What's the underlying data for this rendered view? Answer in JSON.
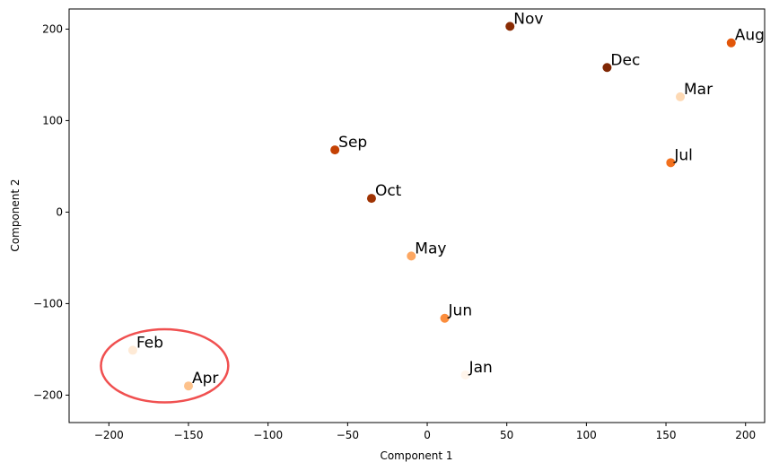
{
  "chart_data": {
    "type": "scatter",
    "xlabel": "Component 1",
    "ylabel": "Component 2",
    "xlim": [
      -225,
      212
    ],
    "ylim": [
      -230,
      222
    ],
    "xticks": [
      -200,
      -150,
      -100,
      -50,
      0,
      50,
      100,
      150,
      200
    ],
    "yticks": [
      -200,
      -100,
      0,
      100,
      200
    ],
    "xtick_labels": [
      "−200",
      "−150",
      "−100",
      "−50",
      "0",
      "50",
      "100",
      "150",
      "200"
    ],
    "ytick_labels": [
      "−200",
      "−100",
      "0",
      "100",
      "200"
    ],
    "grid": false,
    "colormap": "Oranges",
    "points": [
      {
        "label": "Jan",
        "x": 24,
        "y": -178,
        "color": "#fff5eb"
      },
      {
        "label": "Feb",
        "x": -185,
        "y": -151,
        "color": "#feead6"
      },
      {
        "label": "Mar",
        "x": 159,
        "y": 126,
        "color": "#fdd9b4"
      },
      {
        "label": "Apr",
        "x": -150,
        "y": -190,
        "color": "#fdc28c"
      },
      {
        "label": "May",
        "x": -10,
        "y": -48,
        "color": "#fda762"
      },
      {
        "label": "Jun",
        "x": 11,
        "y": -116,
        "color": "#fb8d3d"
      },
      {
        "label": "Jul",
        "x": 153,
        "y": 54,
        "color": "#f2701d"
      },
      {
        "label": "Aug",
        "x": 191,
        "y": 185,
        "color": "#e25609"
      },
      {
        "label": "Sep",
        "x": -58,
        "y": 68,
        "color": "#c44103"
      },
      {
        "label": "Oct",
        "x": -35,
        "y": 15,
        "color": "#9f3303"
      },
      {
        "label": "Nov",
        "x": 52,
        "y": 203,
        "color": "#8a2c04"
      },
      {
        "label": "Dec",
        "x": 113,
        "y": 158,
        "color": "#7f2704"
      }
    ],
    "annotation": {
      "shape": "ellipse",
      "cx": -165,
      "cy": -168,
      "rx": 40,
      "ry": 40,
      "color": "#f05050",
      "encloses": [
        "Feb",
        "Apr"
      ]
    }
  }
}
